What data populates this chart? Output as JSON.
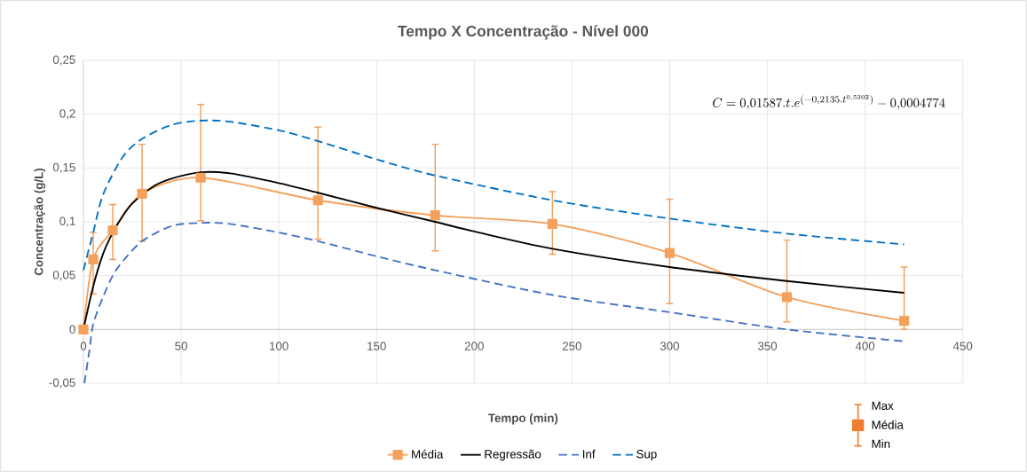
{
  "chart_data": {
    "type": "line",
    "title": "Tempo X Concentração - Nível 000",
    "xlabel": "Tempo (min)",
    "ylabel": "Concentração (g/L)",
    "xlim": [
      0,
      450
    ],
    "xticks": [
      0,
      50,
      100,
      150,
      200,
      250,
      300,
      350,
      400,
      450
    ],
    "ylim": [
      -0.05,
      0.25
    ],
    "yticks": [
      {
        "value": -0.05,
        "label": "-0,05"
      },
      {
        "value": 0,
        "label": "0"
      },
      {
        "value": 0.05,
        "label": "0,05"
      },
      {
        "value": 0.1,
        "label": "0,1"
      },
      {
        "value": 0.15,
        "label": "0,15"
      },
      {
        "value": 0.2,
        "label": "0,2"
      },
      {
        "value": 0.25,
        "label": "0,25"
      }
    ],
    "grid": true,
    "legend": "bottom",
    "series": [
      {
        "name": "Média",
        "color": "#f4a15d",
        "marker": "square",
        "line_style": "solid",
        "x": [
          0,
          5,
          15,
          30,
          60,
          120,
          180,
          240,
          300,
          360,
          420
        ],
        "values": [
          0,
          0.065,
          0.092,
          0.126,
          0.141,
          0.12,
          0.106,
          0.098,
          0.071,
          0.03,
          0.008
        ],
        "errors": [
          null,
          [
            0.033,
            0.09
          ],
          [
            0.065,
            0.116
          ],
          [
            0.082,
            0.172
          ],
          [
            0.101,
            0.209
          ],
          [
            0.084,
            0.188
          ],
          [
            0.073,
            0.172
          ],
          [
            0.07,
            0.128
          ],
          [
            0.024,
            0.121
          ],
          [
            0.007,
            0.083
          ],
          [
            0,
            0.058
          ]
        ]
      },
      {
        "name": "Regressão",
        "color": "#000000",
        "marker": "none",
        "line_style": "solid",
        "x": [
          0,
          5,
          10,
          15,
          20,
          25,
          35,
          45,
          60,
          75,
          100,
          120,
          150,
          180,
          200,
          240,
          300,
          360,
          420
        ],
        "values": [
          0,
          0.04,
          0.07,
          0.09,
          0.105,
          0.117,
          0.132,
          0.14,
          0.146,
          0.145,
          0.136,
          0.127,
          0.113,
          0.1,
          0.091,
          0.075,
          0.058,
          0.045,
          0.034
        ]
      },
      {
        "name": "Inf",
        "color": "#4472c4",
        "marker": "none",
        "line_style": "dashed",
        "x": [
          0.5,
          3,
          5,
          10,
          15,
          20,
          30,
          45,
          60,
          75,
          100,
          120,
          150,
          180,
          240,
          300,
          360,
          420
        ],
        "values": [
          -0.05,
          -0.02,
          0.005,
          0.03,
          0.05,
          0.063,
          0.082,
          0.096,
          0.099,
          0.098,
          0.09,
          0.082,
          0.068,
          0.055,
          0.032,
          0.016,
          0.0,
          -0.011
        ]
      },
      {
        "name": "Sup",
        "color": "#0070c0",
        "marker": "none",
        "line_style": "dashed",
        "x": [
          0,
          5,
          10,
          20,
          30,
          45,
          60,
          75,
          100,
          120,
          150,
          180,
          240,
          300,
          360,
          420
        ],
        "values": [
          0.055,
          0.09,
          0.125,
          0.16,
          0.177,
          0.19,
          0.194,
          0.193,
          0.185,
          0.175,
          0.158,
          0.143,
          0.12,
          0.103,
          0.089,
          0.079
        ]
      }
    ],
    "annotations": [
      "C=0{,}01587.t.e^{(-0{,}2135.t^{0{,}5302})}-0{,}0004774",
      "Max",
      "Média",
      "Min"
    ]
  }
}
